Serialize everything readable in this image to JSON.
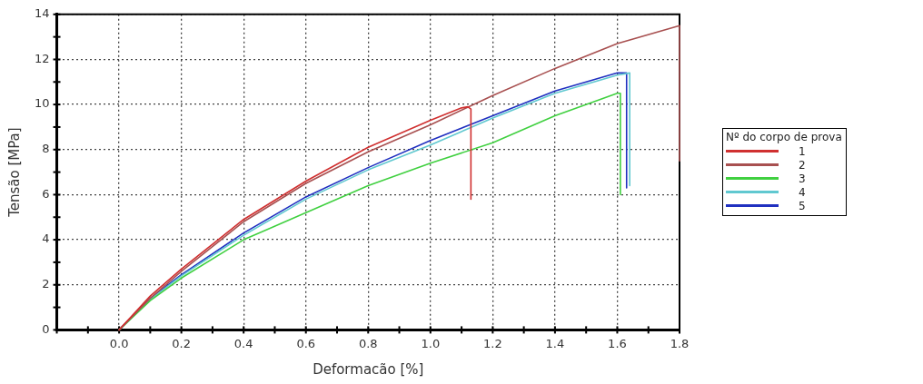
{
  "chart_data": {
    "type": "line",
    "xlabel": "Deformacão [%]",
    "ylabel": "Tensão [MPa]",
    "legend_title": "Nº do corpo de prova",
    "legend": "right",
    "grid": true,
    "marker": "none",
    "line_style": "solid",
    "xlim": [
      -0.2,
      1.8
    ],
    "ylim": [
      0,
      14
    ],
    "xticks": [
      {
        "value": -0.2,
        "label": null
      },
      {
        "value": -0.1,
        "label": null
      },
      {
        "value": 0,
        "label": "0.0"
      },
      {
        "value": 0.1,
        "label": null
      },
      {
        "value": 0.2,
        "label": "0.2"
      },
      {
        "value": 0.3,
        "label": null
      },
      {
        "value": 0.4,
        "label": "0.4"
      },
      {
        "value": 0.5,
        "label": null
      },
      {
        "value": 0.6,
        "label": "0.6"
      },
      {
        "value": 0.7,
        "label": null
      },
      {
        "value": 0.8,
        "label": "0.8"
      },
      {
        "value": 0.9,
        "label": null
      },
      {
        "value": 1,
        "label": "1.0"
      },
      {
        "value": 1.1,
        "label": null
      },
      {
        "value": 1.2,
        "label": "1.2"
      },
      {
        "value": 1.3,
        "label": null
      },
      {
        "value": 1.4,
        "label": "1.4"
      },
      {
        "value": 1.5,
        "label": null
      },
      {
        "value": 1.6,
        "label": "1.6"
      },
      {
        "value": 1.7,
        "label": null
      },
      {
        "value": 1.8,
        "label": "1.8"
      }
    ],
    "yticks": [
      0,
      {
        "value": 1,
        "label": null
      },
      2,
      {
        "value": 3,
        "label": null
      },
      4,
      {
        "value": 5,
        "label": null
      },
      6,
      {
        "value": 7,
        "label": null
      },
      8,
      {
        "value": 9,
        "label": null
      },
      10,
      {
        "value": 11,
        "label": null
      },
      12,
      {
        "value": 13,
        "label": null
      },
      14
    ],
    "series": [
      {
        "name": "1",
        "color": "#d03030",
        "x": [
          0,
          0.1,
          0.2,
          0.4,
          0.6,
          0.8,
          1.0,
          1.1,
          1.12,
          1.13,
          1.13
        ],
        "values": [
          0,
          1.5,
          2.7,
          4.9,
          6.6,
          8.1,
          9.3,
          9.85,
          9.9,
          9.8,
          5.8
        ]
      },
      {
        "name": "2",
        "color": "#a85050",
        "x": [
          0,
          0.1,
          0.2,
          0.4,
          0.6,
          0.8,
          1.0,
          1.2,
          1.4,
          1.6,
          1.8,
          1.8
        ],
        "values": [
          0,
          1.4,
          2.6,
          4.8,
          6.5,
          7.9,
          9.1,
          10.4,
          11.6,
          12.7,
          13.5,
          7.5
        ]
      },
      {
        "name": "3",
        "color": "#40d040",
        "x": [
          0,
          0.1,
          0.2,
          0.4,
          0.6,
          0.8,
          1.0,
          1.2,
          1.4,
          1.6,
          1.61,
          1.61
        ],
        "values": [
          0,
          1.3,
          2.3,
          4.0,
          5.2,
          6.4,
          7.4,
          8.3,
          9.5,
          10.5,
          10.5,
          6.0
        ]
      },
      {
        "name": "4",
        "color": "#60c8d0",
        "x": [
          0,
          0.1,
          0.2,
          0.4,
          0.6,
          0.8,
          1.0,
          1.2,
          1.4,
          1.6,
          1.64,
          1.64
        ],
        "values": [
          0,
          1.35,
          2.4,
          4.2,
          5.8,
          7.1,
          8.2,
          9.4,
          10.5,
          11.3,
          11.4,
          6.4
        ]
      },
      {
        "name": "5",
        "color": "#2030c0",
        "x": [
          0,
          0.1,
          0.2,
          0.4,
          0.6,
          0.8,
          1.0,
          1.2,
          1.4,
          1.6,
          1.63,
          1.63
        ],
        "values": [
          0,
          1.4,
          2.45,
          4.3,
          5.9,
          7.2,
          8.4,
          9.5,
          10.6,
          11.4,
          11.4,
          6.3
        ]
      }
    ]
  }
}
